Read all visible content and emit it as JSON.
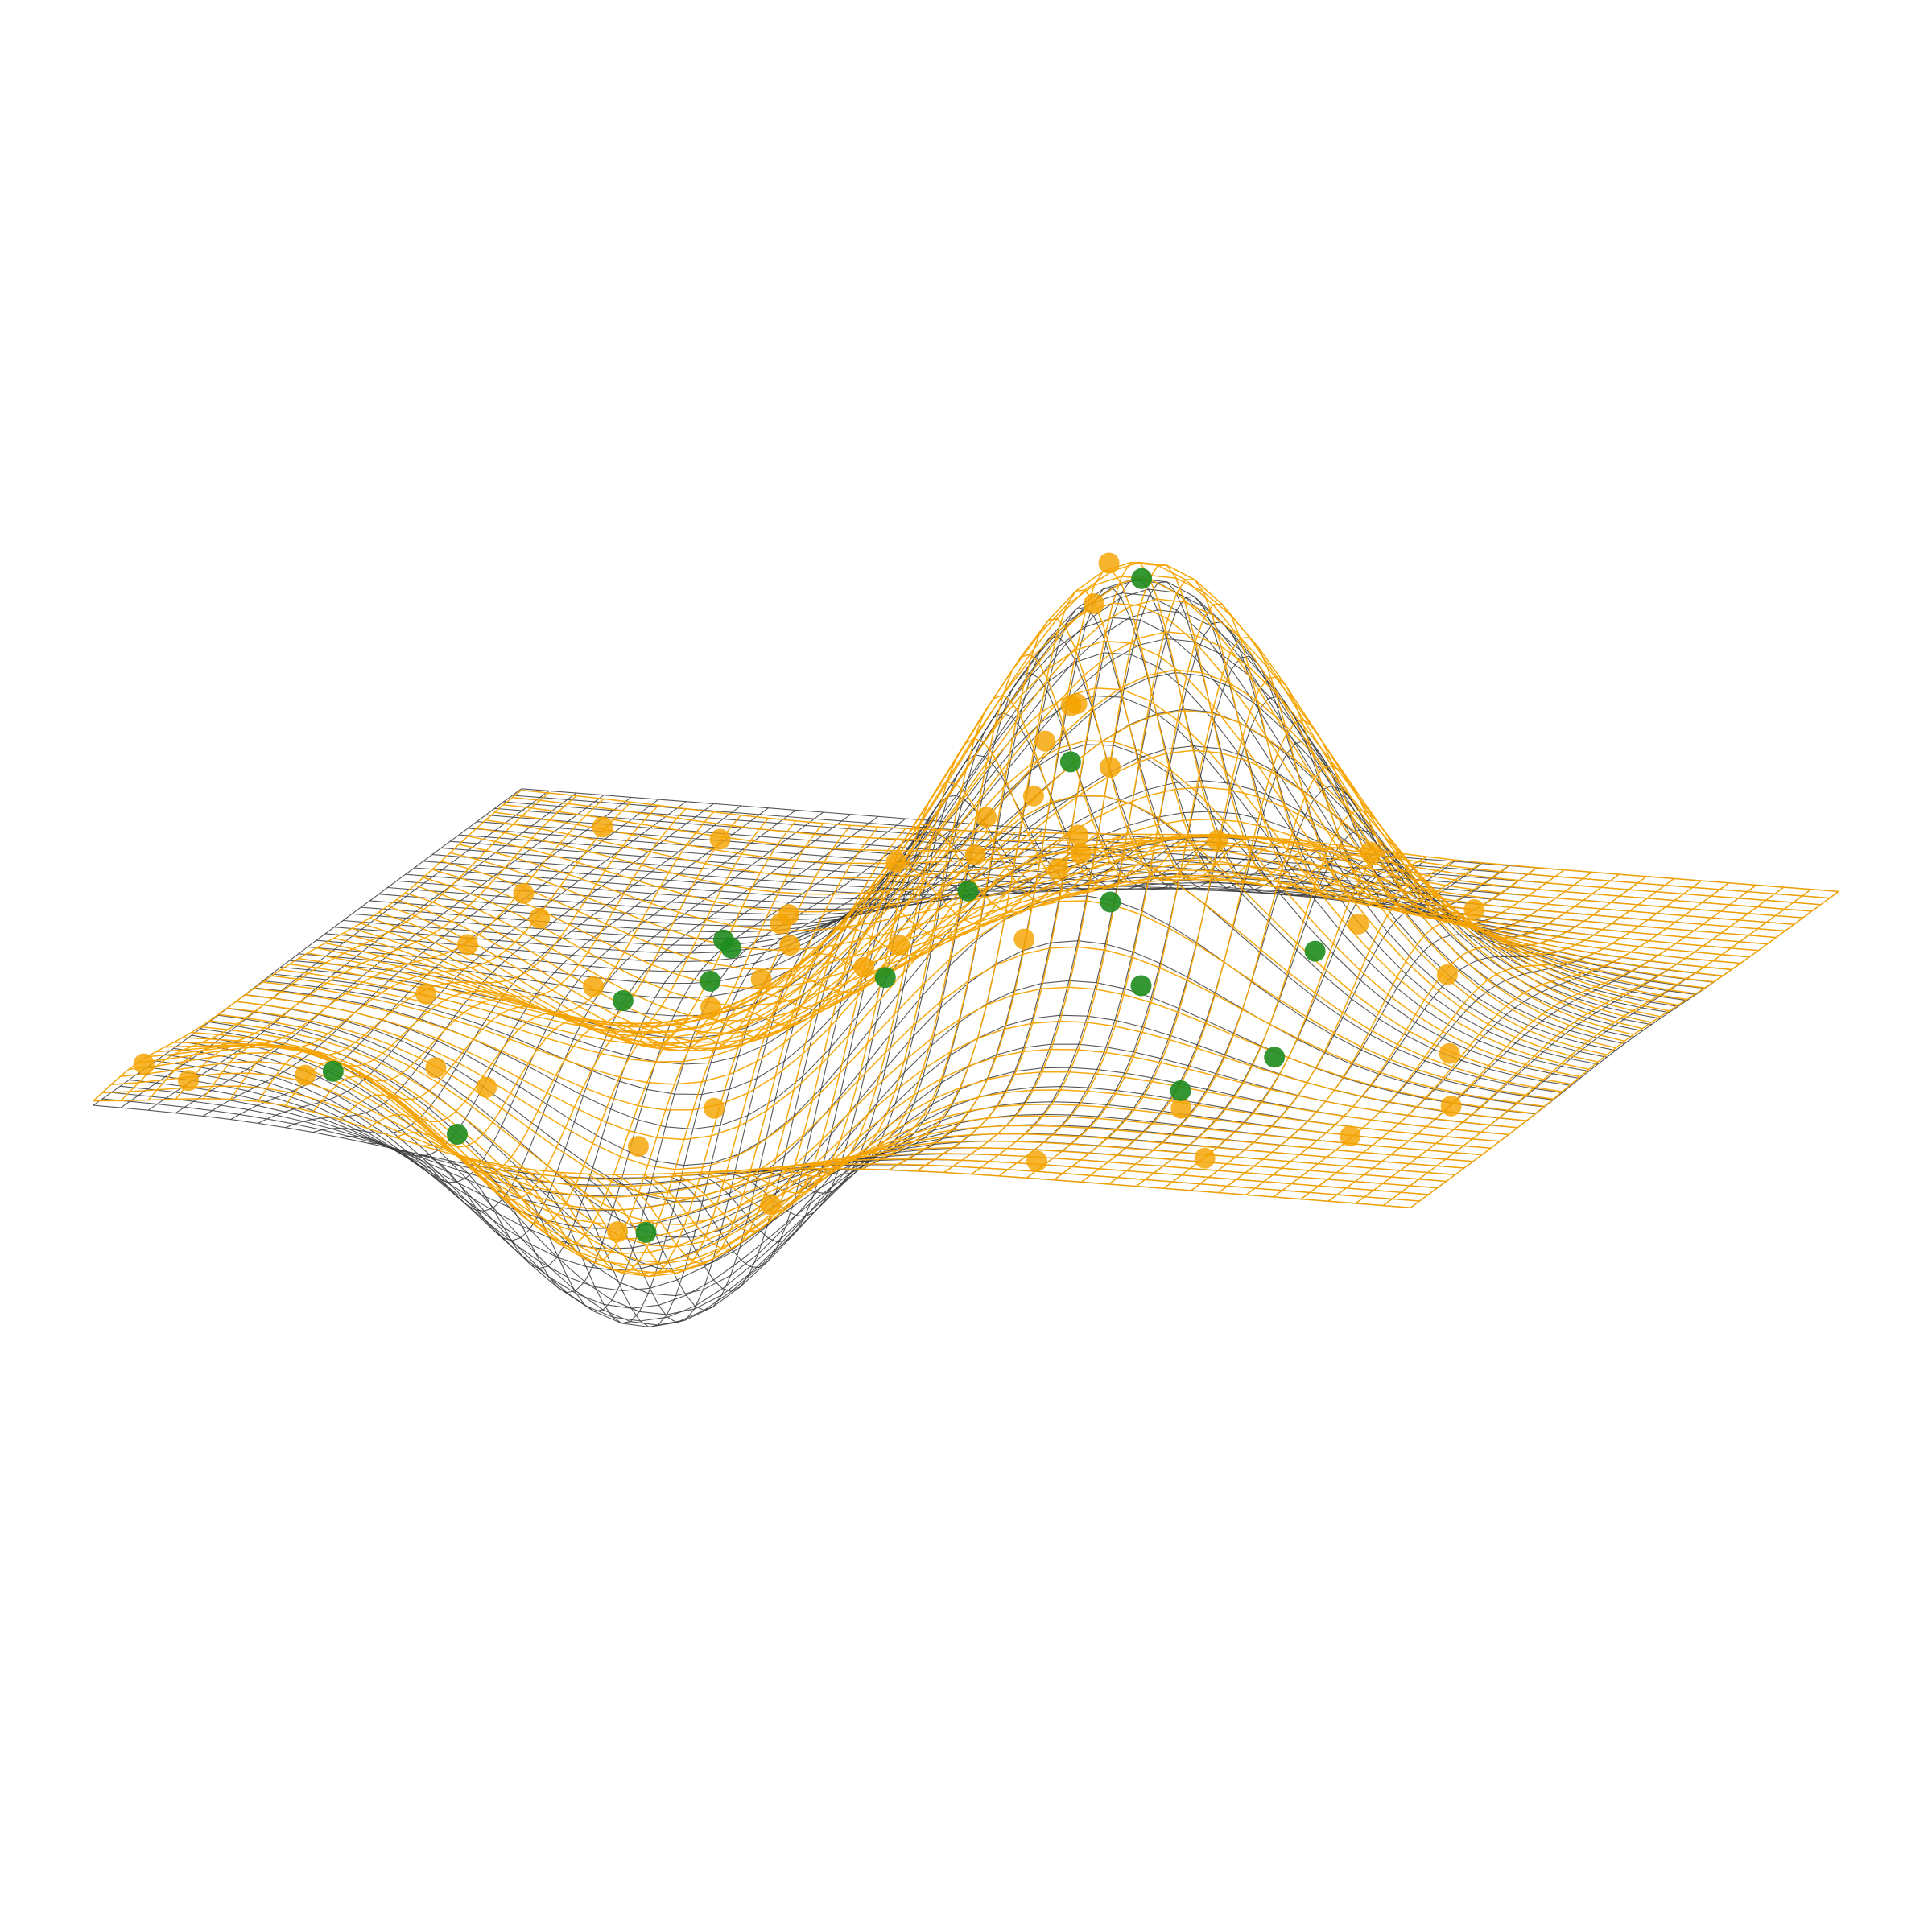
{
  "chart_data": {
    "type": "surface-3d-wireframe-scatter",
    "title": "",
    "xlabel": "",
    "ylabel": "",
    "zlabel": "",
    "axes_visible": false,
    "grid": false,
    "legend": "none",
    "domain": {
      "x": [
        -3,
        3
      ],
      "y": [
        -3,
        3
      ]
    },
    "zlim": [
      -0.7,
      1.1
    ],
    "view": {
      "elevation_deg": 16,
      "azimuth_deg": -72
    },
    "surfaces": [
      {
        "name": "",
        "role": "true-function",
        "style": "wireframe",
        "color": "#3a3a3a",
        "gaussians": [
          {
            "x0": 0.0,
            "y0": 0.8,
            "sx": 0.75,
            "sy": 0.75,
            "amp": 1.0
          },
          {
            "x0": -1.6,
            "y0": -0.9,
            "sx": 0.7,
            "sy": 0.7,
            "amp": -0.6
          }
        ]
      },
      {
        "name": "",
        "role": "fitted-approximation",
        "style": "wireframe",
        "color": "#f5a300",
        "gaussians": [
          {
            "x0": 0.0,
            "y0": 0.8,
            "sx": 0.72,
            "sy": 0.78,
            "amp": 1.04
          },
          {
            "x0": -1.6,
            "y0": -0.9,
            "sx": 0.72,
            "sy": 0.7,
            "amp": -0.48
          },
          {
            "x0": 1.2,
            "y0": -1.6,
            "sx": 0.8,
            "sy": 0.7,
            "amp": -0.32
          },
          {
            "x0": 2.3,
            "y0": 0.4,
            "sx": 0.4,
            "sy": 0.45,
            "amp": 0.1
          },
          {
            "x0": -2.4,
            "y0": -2.2,
            "sx": 0.45,
            "sy": 0.45,
            "amp": 0.12
          }
        ]
      }
    ],
    "scatter": [
      {
        "name": "",
        "color": "#f5a300",
        "points": [
          [
            -0.15,
            0.7,
            1.05
          ],
          [
            0.1,
            0.55,
            0.92
          ],
          [
            -0.6,
            0.7,
            0.78
          ],
          [
            -0.75,
            0.9,
            0.66
          ],
          [
            -0.9,
            0.6,
            0.6
          ],
          [
            -1.1,
            0.4,
            0.48
          ],
          [
            0.55,
            0.3,
            0.62
          ],
          [
            0.8,
            0.1,
            0.5
          ],
          [
            0.9,
            -0.2,
            0.3
          ],
          [
            1.3,
            0.1,
            0.18
          ],
          [
            1.6,
            -0.1,
            0.1
          ],
          [
            0.2,
            0.2,
            0.12
          ],
          [
            -0.2,
            -0.4,
            0.08
          ],
          [
            0.3,
            -0.9,
            0.05
          ],
          [
            0.9,
            -1.1,
            0.04
          ],
          [
            1.4,
            -1.3,
            -0.05
          ],
          [
            2.1,
            -1.0,
            0.02
          ],
          [
            2.4,
            -1.9,
            0.0
          ],
          [
            2.8,
            -0.4,
            0.02
          ],
          [
            2.6,
            0.3,
            0.06
          ],
          [
            2.9,
            0.9,
            0.02
          ],
          [
            2.2,
            1.6,
            0.0
          ],
          [
            1.5,
            1.3,
            0.04
          ],
          [
            0.9,
            1.9,
            0.02
          ],
          [
            -0.3,
            2.3,
            0.0
          ],
          [
            -1.2,
            2.6,
            0.0
          ],
          [
            -2.0,
            2.4,
            0.02
          ],
          [
            -2.5,
            1.9,
            0.01
          ],
          [
            -2.7,
            1.2,
            0.0
          ],
          [
            -1.6,
            1.5,
            0.0
          ],
          [
            -2.9,
            -2.6,
            0.06
          ],
          [
            -2.6,
            -2.9,
            0.05
          ],
          [
            -2.8,
            -2.1,
            0.08
          ],
          [
            -2.2,
            -1.7,
            0.04
          ],
          [
            -1.8,
            -1.6,
            -0.05
          ],
          [
            -1.5,
            -1.1,
            -0.4
          ],
          [
            -1.2,
            -0.5,
            -0.35
          ],
          [
            -0.9,
            -1.2,
            -0.28
          ],
          [
            -0.3,
            -1.6,
            0.0
          ],
          [
            -0.5,
            -1.0,
            0.0
          ],
          [
            0.4,
            -2.4,
            -0.02
          ],
          [
            1.1,
            -2.3,
            -0.04
          ],
          [
            1.8,
            -2.6,
            -0.08
          ],
          [
            2.6,
            -2.5,
            -0.02
          ],
          [
            -0.1,
            -0.9,
            0.02
          ],
          [
            0.6,
            -0.5,
            0.03
          ],
          [
            -2.3,
            -0.4,
            0.01
          ],
          [
            -0.8,
            -2.2,
            0.02
          ]
        ]
      },
      {
        "name": "",
        "color": "#1e8c1e",
        "points": [
          [
            0.0,
            0.8,
            1.0
          ],
          [
            0.85,
            0.2,
            0.45
          ],
          [
            0.95,
            -0.3,
            0.12
          ],
          [
            1.1,
            0.3,
            0.1
          ],
          [
            0.1,
            -0.4,
            0.02
          ],
          [
            -0.2,
            -1.1,
            0.02
          ],
          [
            -0.5,
            -1.4,
            0.0
          ],
          [
            0.4,
            -1.2,
            0.02
          ],
          [
            0.45,
            -1.25,
            0.03
          ],
          [
            -2.1,
            -2.2,
            0.0
          ],
          [
            -1.9,
            -1.7,
            -0.15
          ],
          [
            -1.1,
            -1.1,
            -0.45
          ],
          [
            -1.3,
            1.4,
            0.0
          ],
          [
            0.3,
            0.7,
            0.02
          ],
          [
            -0.6,
            1.6,
            0.0
          ],
          [
            1.2,
            1.2,
            0.01
          ]
        ]
      }
    ]
  }
}
